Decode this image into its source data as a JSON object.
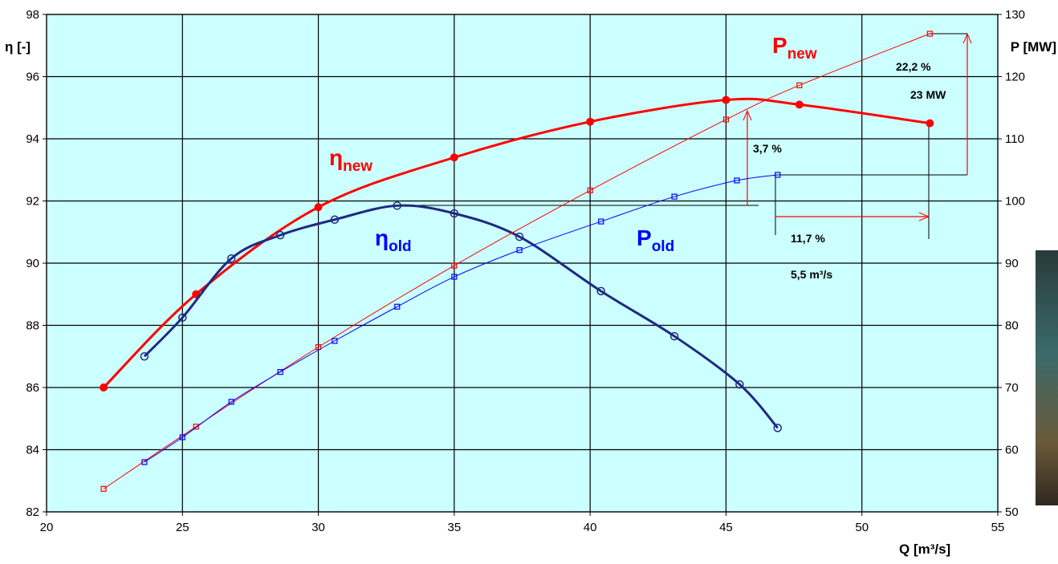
{
  "chart_data": {
    "type": "line",
    "x_label": "Q [m³/s]",
    "y_label": "η [-]",
    "y2_label": "P [MW]",
    "xlim": [
      20,
      55
    ],
    "xticks": [
      20,
      25,
      30,
      35,
      40,
      45,
      50,
      55
    ],
    "ylim": [
      82,
      98
    ],
    "yticks": [
      82,
      84,
      86,
      88,
      90,
      92,
      94,
      96,
      98
    ],
    "y2lim": [
      50,
      130
    ],
    "y2ticks": [
      50,
      60,
      70,
      80,
      90,
      100,
      110,
      120,
      130
    ],
    "grid": true,
    "background": "#ccffff",
    "series": [
      {
        "label": {
          "text": "η",
          "sub": "new"
        },
        "color": "#ff0000",
        "marker": "filled-circle",
        "width": 3,
        "x": [
          22.1,
          25.5,
          30,
          35,
          40,
          45,
          47.7,
          52.5
        ],
        "values": [
          86.0,
          89.0,
          91.8,
          93.4,
          94.55,
          95.25,
          95.1,
          94.5
        ]
      },
      {
        "label": {
          "text": "η",
          "sub": "old"
        },
        "color": "#1f2a80",
        "marker": "open-circle",
        "width": 3,
        "x": [
          23.6,
          25,
          26.8,
          28.6,
          30.6,
          32.9,
          35,
          37.4,
          40.4,
          43.1,
          45.5,
          46.9
        ],
        "values": [
          87.0,
          88.25,
          90.15,
          90.9,
          91.4,
          91.85,
          91.6,
          90.85,
          89.1,
          87.65,
          86.1,
          84.7
        ]
      },
      {
        "label": {
          "text": "P",
          "sub": "new"
        },
        "color": "#ff0000",
        "marker": "open-square",
        "width": 1,
        "axis": "y2",
        "x": [
          22.1,
          25.5,
          30,
          35,
          40,
          45,
          47.7,
          52.5
        ],
        "values": [
          53.7,
          63.7,
          76.5,
          89.6,
          101.7,
          113.1,
          118.6,
          126.9
        ]
      },
      {
        "label": {
          "text": "P",
          "sub": "old"
        },
        "color": "#0000ff",
        "marker": "open-square",
        "width": 1,
        "axis": "y2",
        "x": [
          23.6,
          25,
          26.8,
          28.6,
          30.6,
          32.9,
          35,
          37.4,
          40.4,
          43.1,
          45.4,
          46.9
        ],
        "values": [
          58.0,
          62.0,
          67.7,
          72.5,
          77.5,
          83.0,
          87.8,
          92.1,
          96.7,
          100.7,
          103.3,
          104.2
        ]
      }
    ],
    "annotations": [
      "22,2 %",
      "23 MW",
      "3,7 %",
      "11,7 %",
      "5,5 m³/s"
    ]
  }
}
